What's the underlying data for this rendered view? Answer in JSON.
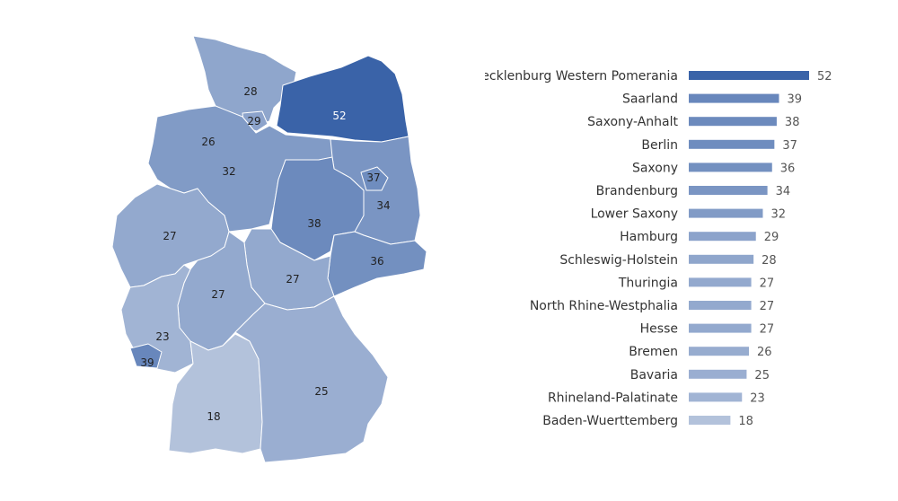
{
  "chart_data": {
    "type": "bar",
    "orientation": "horizontal",
    "categories": [
      "Mecklenburg Western Pomerania",
      "Saarland",
      "Saxony-Anhalt",
      "Berlin",
      "Saxony",
      "Brandenburg",
      "Lower Saxony",
      "Hamburg",
      "Schleswig-Holstein",
      "Thuringia",
      "North Rhine-Westphalia",
      "Hesse",
      "Bremen",
      "Bavaria",
      "Rhineland-Palatinate",
      "Baden-Wuerttemberg"
    ],
    "values": [
      52,
      39,
      38,
      37,
      36,
      34,
      32,
      29,
      28,
      27,
      27,
      27,
      26,
      25,
      23,
      18
    ],
    "xlim": [
      0,
      52
    ],
    "grid": false,
    "legend": "none",
    "colors": {
      "max": "#3a63a8",
      "min": "#b3c2db"
    }
  },
  "map": {
    "regions": [
      {
        "name": "Schleswig-Holstein",
        "value": 28
      },
      {
        "name": "Hamburg",
        "value": 29
      },
      {
        "name": "Mecklenburg Western Pomerania",
        "value": 52
      },
      {
        "name": "Bremen",
        "value": 26
      },
      {
        "name": "Lower Saxony",
        "value": 32
      },
      {
        "name": "Berlin",
        "value": 37
      },
      {
        "name": "Brandenburg",
        "value": 34
      },
      {
        "name": "Saxony-Anhalt",
        "value": 38
      },
      {
        "name": "North Rhine-Westphalia",
        "value": 27
      },
      {
        "name": "Saxony",
        "value": 36
      },
      {
        "name": "Thuringia",
        "value": 27
      },
      {
        "name": "Hesse",
        "value": 27
      },
      {
        "name": "Rhineland-Palatinate",
        "value": 23
      },
      {
        "name": "Saarland",
        "value": 39
      },
      {
        "name": "Baden-Wuerttemberg",
        "value": 18
      },
      {
        "name": "Bavaria",
        "value": 25
      }
    ]
  }
}
